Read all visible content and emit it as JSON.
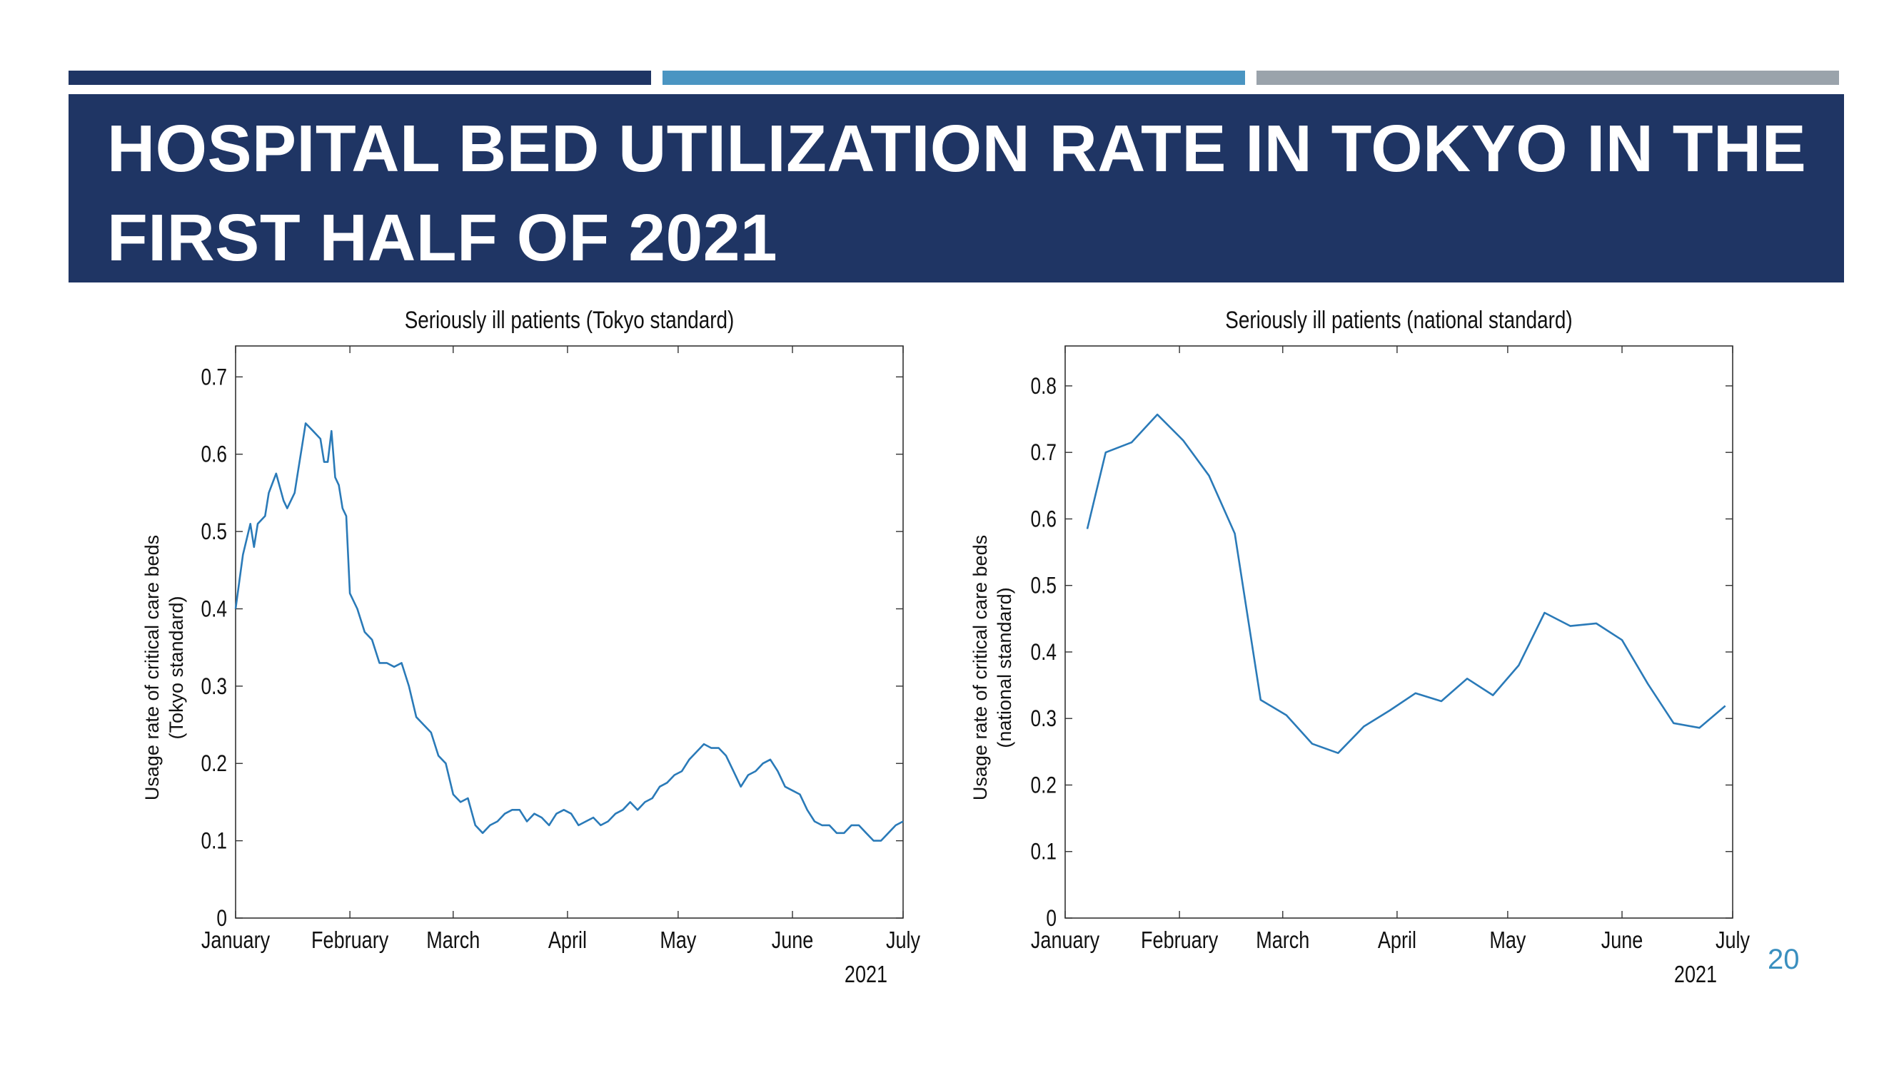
{
  "slide": {
    "title": "HOSPITAL BED UTILIZATION RATE IN TOKYO IN THE FIRST HALF OF 2021",
    "page_number": "20",
    "accent_colors": [
      "#1f3564",
      "#4a95c2",
      "#9aa3ab"
    ]
  },
  "chart_data": [
    {
      "type": "line",
      "title": "Seriously ill patients (Tokyo standard)",
      "ylabel": [
        "Usage rate of critical care beds",
        "(Tokyo standard)"
      ],
      "xlabel": "",
      "x_year_label": "2021",
      "x_tick_labels": [
        "January",
        "February",
        "March",
        "April",
        "May",
        "June",
        "July"
      ],
      "x_ticks": [
        0,
        31,
        59,
        90,
        120,
        151,
        181
      ],
      "xlim": [
        0,
        181
      ],
      "ylim": [
        0,
        0.74
      ],
      "y_ticks": [
        0,
        0.1,
        0.2,
        0.3,
        0.4,
        0.5,
        0.6,
        0.7
      ],
      "y_tick_labels": [
        "0",
        "0.1",
        "0.2",
        "0.3",
        "0.4",
        "0.5",
        "0.6",
        "0.7"
      ],
      "grid": false,
      "line_color": "#2a7ab8",
      "series": [
        {
          "points": [
            [
              0,
              0.4
            ],
            [
              2,
              0.47
            ],
            [
              4,
              0.51
            ],
            [
              5,
              0.48
            ],
            [
              6,
              0.51
            ],
            [
              8,
              0.52
            ],
            [
              9,
              0.55
            ],
            [
              11,
              0.575
            ],
            [
              13,
              0.54
            ],
            [
              14,
              0.53
            ],
            [
              16,
              0.55
            ],
            [
              17,
              0.58
            ],
            [
              18,
              0.61
            ],
            [
              19,
              0.64
            ],
            [
              21,
              0.63
            ],
            [
              23,
              0.62
            ],
            [
              24,
              0.59
            ],
            [
              25,
              0.59
            ],
            [
              26,
              0.63
            ],
            [
              27,
              0.57
            ],
            [
              28,
              0.56
            ],
            [
              29,
              0.53
            ],
            [
              30,
              0.52
            ],
            [
              31,
              0.42
            ],
            [
              33,
              0.4
            ],
            [
              35,
              0.37
            ],
            [
              37,
              0.36
            ],
            [
              39,
              0.33
            ],
            [
              41,
              0.33
            ],
            [
              43,
              0.325
            ],
            [
              45,
              0.33
            ],
            [
              47,
              0.3
            ],
            [
              49,
              0.26
            ],
            [
              51,
              0.25
            ],
            [
              53,
              0.24
            ],
            [
              55,
              0.21
            ],
            [
              57,
              0.2
            ],
            [
              59,
              0.16
            ],
            [
              61,
              0.15
            ],
            [
              63,
              0.155
            ],
            [
              65,
              0.12
            ],
            [
              67,
              0.11
            ],
            [
              69,
              0.12
            ],
            [
              71,
              0.125
            ],
            [
              73,
              0.135
            ],
            [
              75,
              0.14
            ],
            [
              77,
              0.14
            ],
            [
              79,
              0.125
            ],
            [
              81,
              0.135
            ],
            [
              83,
              0.13
            ],
            [
              85,
              0.12
            ],
            [
              87,
              0.135
            ],
            [
              89,
              0.14
            ],
            [
              91,
              0.135
            ],
            [
              93,
              0.12
            ],
            [
              95,
              0.125
            ],
            [
              97,
              0.13
            ],
            [
              99,
              0.12
            ],
            [
              101,
              0.125
            ],
            [
              103,
              0.135
            ],
            [
              105,
              0.14
            ],
            [
              107,
              0.15
            ],
            [
              109,
              0.14
            ],
            [
              111,
              0.15
            ],
            [
              113,
              0.155
            ],
            [
              115,
              0.17
            ],
            [
              117,
              0.175
            ],
            [
              119,
              0.185
            ],
            [
              121,
              0.19
            ],
            [
              123,
              0.205
            ],
            [
              125,
              0.215
            ],
            [
              127,
              0.225
            ],
            [
              129,
              0.22
            ],
            [
              131,
              0.22
            ],
            [
              133,
              0.21
            ],
            [
              135,
              0.19
            ],
            [
              137,
              0.17
            ],
            [
              139,
              0.185
            ],
            [
              141,
              0.19
            ],
            [
              143,
              0.2
            ],
            [
              145,
              0.205
            ],
            [
              147,
              0.19
            ],
            [
              149,
              0.17
            ],
            [
              151,
              0.165
            ],
            [
              153,
              0.16
            ],
            [
              155,
              0.14
            ],
            [
              157,
              0.125
            ],
            [
              159,
              0.12
            ],
            [
              161,
              0.12
            ],
            [
              163,
              0.11
            ],
            [
              165,
              0.11
            ],
            [
              167,
              0.12
            ],
            [
              169,
              0.12
            ],
            [
              171,
              0.11
            ],
            [
              173,
              0.1
            ],
            [
              175,
              0.1
            ],
            [
              177,
              0.11
            ],
            [
              179,
              0.12
            ],
            [
              181,
              0.125
            ]
          ]
        }
      ]
    },
    {
      "type": "line",
      "title": "Seriously ill patients (national standard)",
      "ylabel": [
        "Usage rate of critical care beds",
        "(national standard)"
      ],
      "xlabel": "",
      "x_year_label": "2021",
      "x_tick_labels": [
        "January",
        "February",
        "March",
        "April",
        "May",
        "June",
        "July"
      ],
      "x_ticks": [
        0,
        31,
        59,
        90,
        120,
        151,
        181
      ],
      "xlim": [
        0,
        181
      ],
      "ylim": [
        0,
        0.86
      ],
      "y_ticks": [
        0,
        0.1,
        0.2,
        0.3,
        0.4,
        0.5,
        0.6,
        0.7,
        0.8
      ],
      "y_tick_labels": [
        "0",
        "0.1",
        "0.2",
        "0.3",
        "0.4",
        "0.5",
        "0.6",
        "0.7",
        "0.8"
      ],
      "grid": false,
      "line_color": "#2a7ab8",
      "series": [
        {
          "points": [
            [
              6,
              0.585
            ],
            [
              11,
              0.7
            ],
            [
              18,
              0.715
            ],
            [
              25,
              0.757
            ],
            [
              32,
              0.718
            ],
            [
              39,
              0.665
            ],
            [
              46,
              0.578
            ],
            [
              53,
              0.328
            ],
            [
              60,
              0.305
            ],
            [
              67,
              0.262
            ],
            [
              74,
              0.248
            ],
            [
              81,
              0.288
            ],
            [
              88,
              0.312
            ],
            [
              95,
              0.338
            ],
            [
              102,
              0.326
            ],
            [
              109,
              0.36
            ],
            [
              116,
              0.335
            ],
            [
              123,
              0.38
            ],
            [
              130,
              0.459
            ],
            [
              137,
              0.439
            ],
            [
              144,
              0.443
            ],
            [
              151,
              0.418
            ],
            [
              158,
              0.352
            ],
            [
              165,
              0.293
            ],
            [
              172,
              0.286
            ],
            [
              179,
              0.319
            ]
          ]
        }
      ]
    }
  ]
}
